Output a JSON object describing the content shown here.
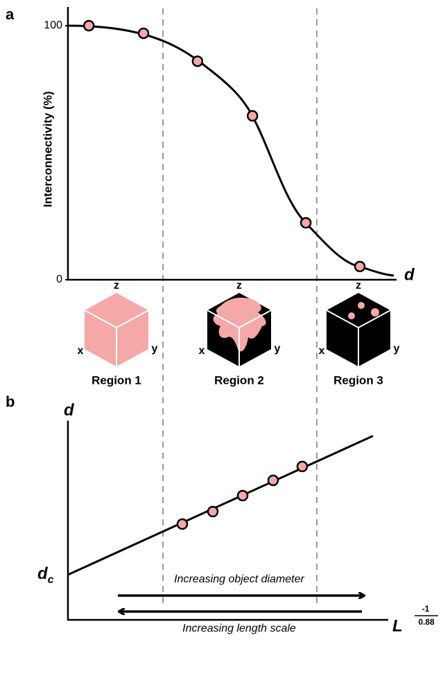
{
  "chart_data": {
    "type": "line",
    "panel_label": "a",
    "y_label": "Interconnectivity (%)",
    "x_label": "d",
    "x": [
      0.064,
      0.231,
      0.396,
      0.564,
      0.727,
      0.892
    ],
    "xlim": [
      0,
      1
    ],
    "values": [
      100,
      97,
      86,
      64.5,
      22.4,
      5.2
    ],
    "ylim": [
      0,
      100
    ],
    "yticks": [
      0,
      100
    ],
    "color": "#f4a9a8"
  },
  "regions": [
    {
      "label": "Region 1",
      "axes": [
        "x",
        "y",
        "z"
      ]
    },
    {
      "label": "Region 2",
      "axes": [
        "x",
        "y",
        "z"
      ]
    },
    {
      "label": "Region 3",
      "axes": [
        "x",
        "y",
        "z"
      ]
    }
  ],
  "panel_b": {
    "panel_label": "b",
    "y_label": "d",
    "intercept_label": {
      "main": "d",
      "sub": "c"
    },
    "x_label": {
      "main": "L",
      "exp_num": "-1",
      "exp_den": "0.88"
    },
    "arrow_right": "Increasing object diameter",
    "arrow_left": "Increasing length scale"
  }
}
